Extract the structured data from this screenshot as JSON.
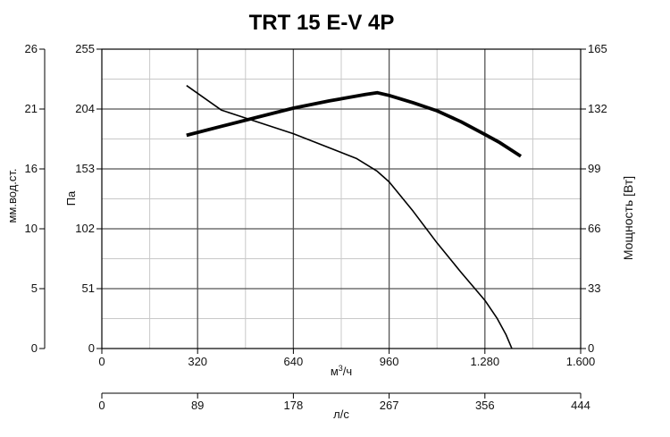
{
  "chart_data": {
    "type": "line",
    "title": "TRT 15 E-V 4P",
    "x_axis": {
      "label_base": "м",
      "label_sup": "3",
      "label_suffix": "/ч",
      "range": [
        0,
        1600
      ],
      "ticks": [
        "0",
        "320",
        "640",
        "960",
        "1.280",
        "1.600"
      ],
      "tick_values": [
        0,
        320,
        640,
        960,
        1280,
        1600
      ]
    },
    "x_axis_secondary": {
      "label": "л/с",
      "range": [
        0,
        444
      ],
      "ticks": [
        "0",
        "89",
        "178",
        "267",
        "356",
        "444"
      ]
    },
    "y_axis_left_outer": {
      "label": "мм.вод.ст.",
      "ticks": [
        "0",
        "5",
        "10",
        "16",
        "21",
        "26"
      ]
    },
    "y_axis_left": {
      "label": "Па",
      "range": [
        0,
        255
      ],
      "ticks": [
        "0",
        "51",
        "102",
        "153",
        "204",
        "255"
      ]
    },
    "y_axis_right": {
      "label": "Мощность [Вт]",
      "range": [
        0,
        165
      ],
      "ticks": [
        "0",
        "33",
        "66",
        "99",
        "132",
        "165"
      ]
    },
    "grid": true,
    "series": [
      {
        "axis": "left",
        "stroke": "#000000",
        "weight": "thin",
        "points": [
          [
            283,
            224
          ],
          [
            400,
            203
          ],
          [
            640,
            183
          ],
          [
            850,
            162
          ],
          [
            920,
            151
          ],
          [
            960,
            142
          ],
          [
            1040,
            117
          ],
          [
            1120,
            90
          ],
          [
            1200,
            65
          ],
          [
            1280,
            41
          ],
          [
            1320,
            26
          ],
          [
            1350,
            12
          ],
          [
            1370,
            0
          ]
        ]
      },
      {
        "axis": "right",
        "stroke": "#000000",
        "weight": "thick",
        "points": [
          [
            283,
            117.5
          ],
          [
            400,
            122.5
          ],
          [
            520,
            127.5
          ],
          [
            640,
            132.5
          ],
          [
            760,
            136.5
          ],
          [
            880,
            140
          ],
          [
            920,
            141
          ],
          [
            960,
            139.5
          ],
          [
            1040,
            135.5
          ],
          [
            1120,
            131
          ],
          [
            1200,
            125
          ],
          [
            1280,
            118
          ],
          [
            1330,
            113.5
          ],
          [
            1400,
            106
          ]
        ]
      }
    ]
  }
}
